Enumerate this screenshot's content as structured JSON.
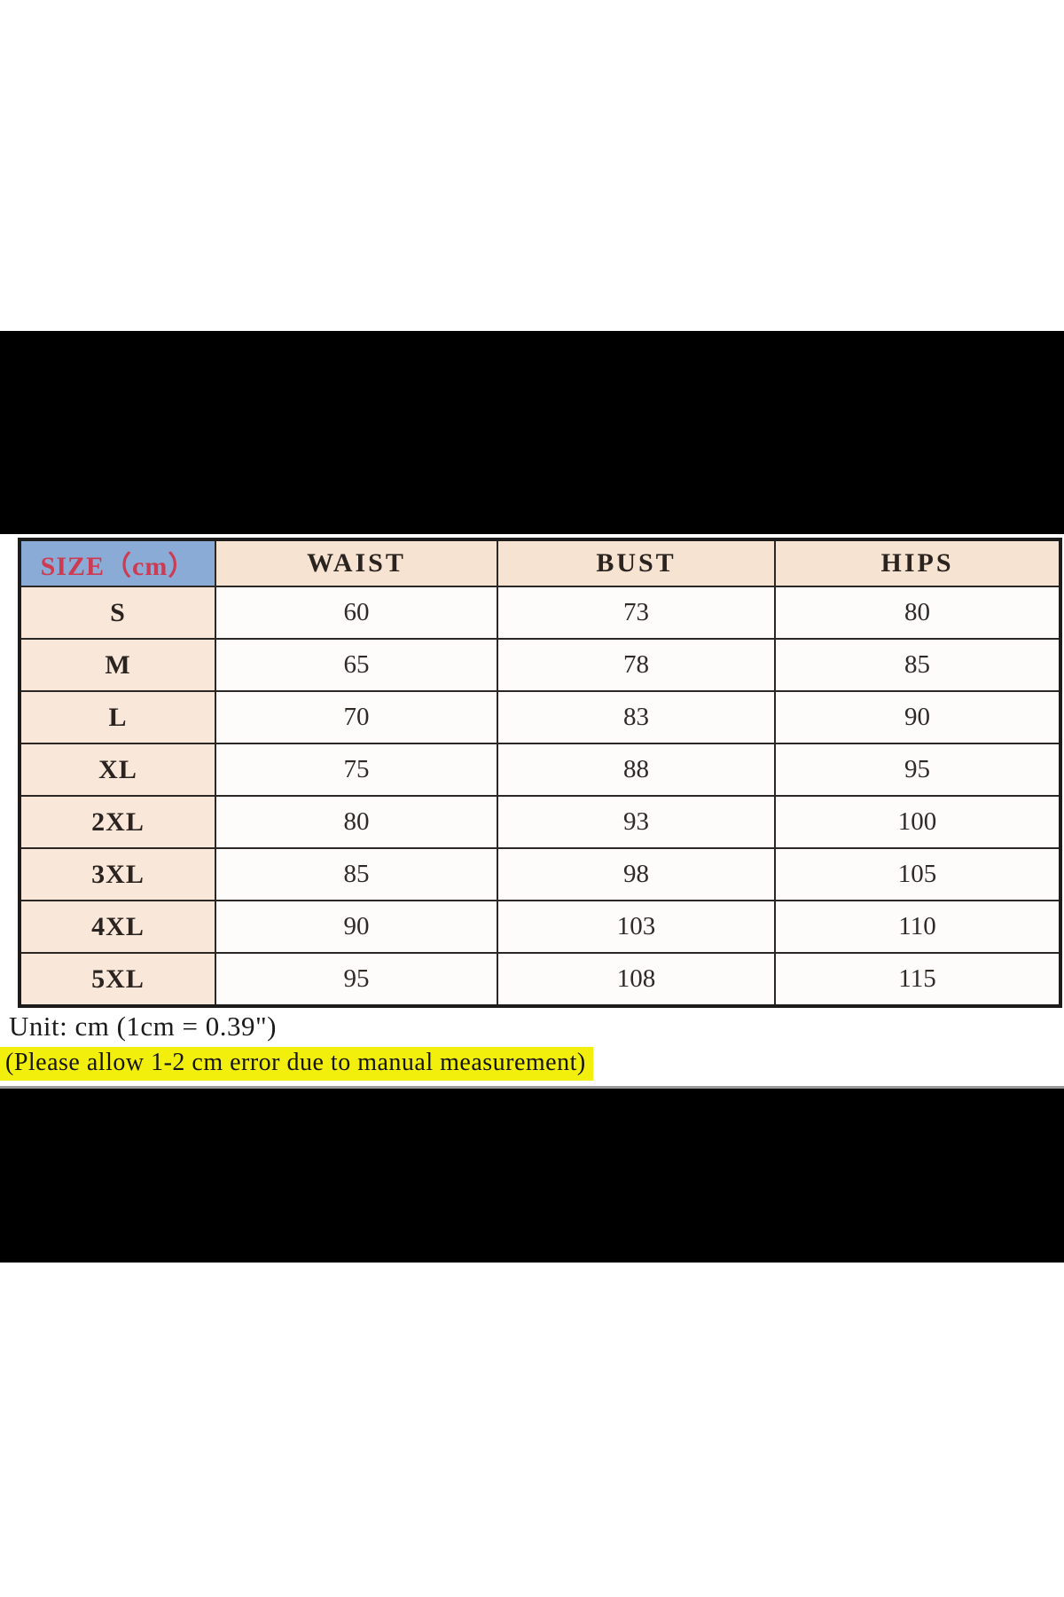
{
  "colors": {
    "letterbox": "#000000",
    "header_size_bg": "#8aabd5",
    "header_size_text": "#cd3b52",
    "header_bg": "#f6e3d1",
    "size_column_bg": "#f9e8da",
    "cell_bg": "#fdfcfa",
    "table_border": "#2a2724",
    "highlight": "#f2ef0c",
    "divider_gray": "#9a9a9a"
  },
  "table": {
    "headers": [
      "SIZE（cm）",
      "WAIST",
      "BUST",
      "HIPS"
    ],
    "rows": [
      {
        "size": "S",
        "waist": "60",
        "bust": "73",
        "hips": "80"
      },
      {
        "size": "M",
        "waist": "65",
        "bust": "78",
        "hips": "85"
      },
      {
        "size": "L",
        "waist": "70",
        "bust": "83",
        "hips": "90"
      },
      {
        "size": "XL",
        "waist": "75",
        "bust": "88",
        "hips": "95"
      },
      {
        "size": "2XL",
        "waist": "80",
        "bust": "93",
        "hips": "100"
      },
      {
        "size": "3XL",
        "waist": "85",
        "bust": "98",
        "hips": "105"
      },
      {
        "size": "4XL",
        "waist": "90",
        "bust": "103",
        "hips": "110"
      },
      {
        "size": "5XL",
        "waist": "95",
        "bust": "108",
        "hips": "115"
      }
    ]
  },
  "notes": {
    "unit": "Unit: cm (1cm = 0.39\")",
    "tolerance": "(Please allow 1-2 cm error due to manual measurement)"
  },
  "chart_data": {
    "type": "table",
    "title": "SIZE（cm）",
    "columns": [
      "SIZE（cm）",
      "WAIST",
      "BUST",
      "HIPS"
    ],
    "categories": [
      "S",
      "M",
      "L",
      "XL",
      "2XL",
      "3XL",
      "4XL",
      "5XL"
    ],
    "series": [
      {
        "name": "WAIST",
        "values": [
          60,
          65,
          70,
          75,
          80,
          85,
          90,
          95
        ]
      },
      {
        "name": "BUST",
        "values": [
          73,
          78,
          83,
          88,
          93,
          98,
          103,
          108
        ]
      },
      {
        "name": "HIPS",
        "values": [
          80,
          85,
          90,
          95,
          100,
          105,
          110,
          115
        ]
      }
    ]
  }
}
